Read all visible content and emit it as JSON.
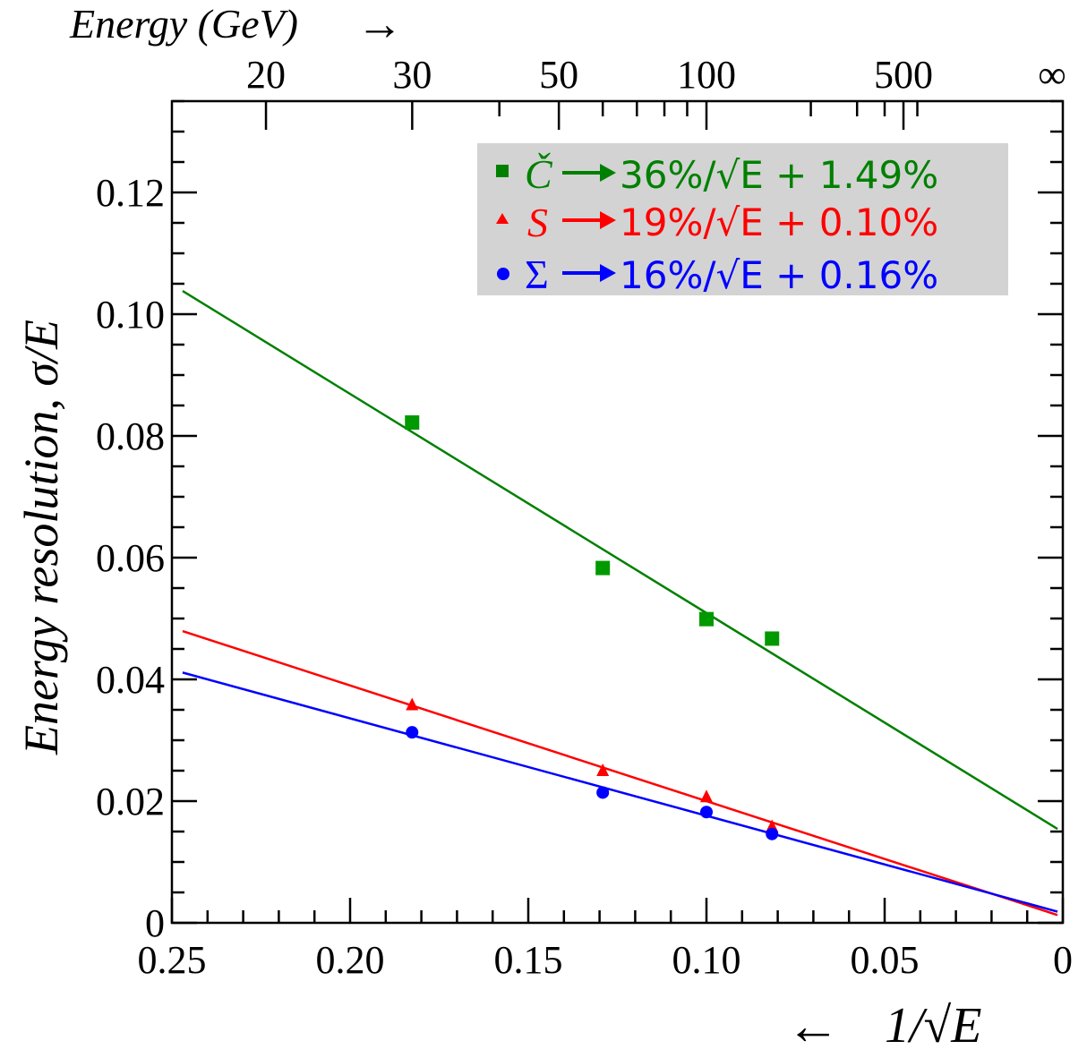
{
  "chart_data": {
    "type": "scatter",
    "top_axis": {
      "label": "Energy (GeV)",
      "arrow": "→",
      "tick_labels": [
        {
          "energy": 20,
          "label": "20"
        },
        {
          "energy": 30,
          "label": "30"
        },
        {
          "energy": 50,
          "label": "50"
        },
        {
          "energy": 100,
          "label": "100"
        },
        {
          "energy": 500,
          "label": "500"
        },
        {
          "energy": "inf",
          "label": "∞"
        }
      ]
    },
    "x_axis": {
      "label": "1/√E",
      "arrow": "←",
      "reversed": true,
      "range": [
        0.25,
        0
      ],
      "tick_labels": [
        "0.25",
        "0.20",
        "0.15",
        "0.10",
        "0.05",
        "0"
      ]
    },
    "y_axis": {
      "label": "Energy resolution, σ/E",
      "range": [
        0,
        0.135
      ],
      "tick_labels": [
        "0",
        "0.02",
        "0.04",
        "0.06",
        "0.08",
        "0.10",
        "0.12"
      ]
    },
    "grid": false,
    "legend": {
      "placement": "top-right",
      "background": "#d3d3d3"
    },
    "series": [
      {
        "name": "Č",
        "fit_label": "36%/√E + 1.49%",
        "color": "#008000",
        "marker": "square",
        "points": [
          {
            "x": 0.1826,
            "y": 0.0822
          },
          {
            "x": 0.1291,
            "y": 0.0583
          },
          {
            "x": 0.1,
            "y": 0.0499
          },
          {
            "x": 0.0816,
            "y": 0.0467
          }
        ],
        "fit": {
          "intercept": 0.0149,
          "slope": 0.36
        }
      },
      {
        "name": "S",
        "fit_label": "19%/√E + 0.10%",
        "color": "#ff0000",
        "marker": "triangle",
        "points": [
          {
            "x": 0.1826,
            "y": 0.0358
          },
          {
            "x": 0.1291,
            "y": 0.025
          },
          {
            "x": 0.1,
            "y": 0.0207
          },
          {
            "x": 0.0816,
            "y": 0.0158
          }
        ],
        "fit": {
          "intercept": 0.001,
          "slope": 0.19
        }
      },
      {
        "name": "Σ",
        "fit_label": "16%/√E + 0.16%",
        "color": "#0000ff",
        "marker": "circle",
        "points": [
          {
            "x": 0.1826,
            "y": 0.0313
          },
          {
            "x": 0.1291,
            "y": 0.0214
          },
          {
            "x": 0.1,
            "y": 0.0182
          },
          {
            "x": 0.0816,
            "y": 0.0146
          }
        ],
        "fit": {
          "intercept": 0.0016,
          "slope": 0.16
        }
      }
    ]
  }
}
